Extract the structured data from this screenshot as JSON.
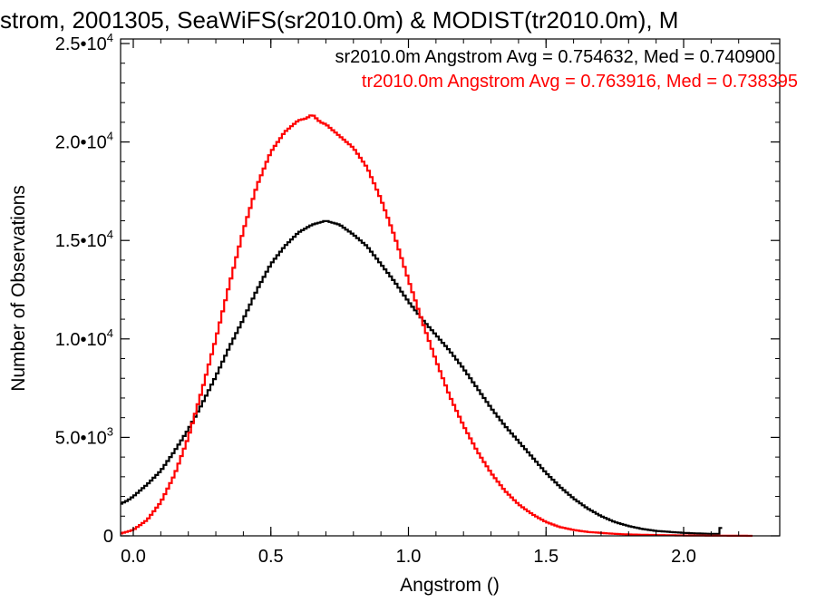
{
  "chart_data": {
    "type": "line",
    "title": "strom, 2001305, SeaWiFS(sr2010.0m) & MODIST(tr2010.0m), M",
    "xlabel": "Angstrom ()",
    "ylabel": "Number of Observations",
    "xlim": [
      -0.05,
      2.25
    ],
    "ylim": [
      0,
      25000
    ],
    "x_ticks": [
      {
        "value": 0.0,
        "label": "0.0"
      },
      {
        "value": 0.5,
        "label": "0.5"
      },
      {
        "value": 1.0,
        "label": "1.0"
      },
      {
        "value": 1.5,
        "label": "1.5"
      },
      {
        "value": 2.0,
        "label": "2.0"
      }
    ],
    "y_ticks": [
      {
        "value": 0,
        "mantissa": "0",
        "exp": ""
      },
      {
        "value": 5000,
        "mantissa": "5.0•10",
        "exp": "3"
      },
      {
        "value": 10000,
        "mantissa": "1.0•10",
        "exp": "4"
      },
      {
        "value": 15000,
        "mantissa": "1.5•10",
        "exp": "4"
      },
      {
        "value": 20000,
        "mantissa": "2.0•10",
        "exp": "4"
      },
      {
        "value": 25000,
        "mantissa": "2.5•10",
        "exp": "4"
      }
    ],
    "grid": false,
    "legend_position": "top-right",
    "annotations": [
      {
        "text": "sr2010.0m Angstrom Avg = 0.754632, Med = 0.740900",
        "color": "#000000"
      },
      {
        "text": "tr2010.0m Angstrom Avg = 0.763916, Med = 0.738395",
        "color": "#ff0000"
      }
    ],
    "series": [
      {
        "color": "#000000",
        "x": [
          -0.05,
          -0.02,
          0.0,
          0.05,
          0.1,
          0.15,
          0.2,
          0.25,
          0.3,
          0.35,
          0.4,
          0.45,
          0.5,
          0.55,
          0.6,
          0.65,
          0.7,
          0.75,
          0.8,
          0.85,
          0.9,
          0.95,
          1.0,
          1.05,
          1.1,
          1.15,
          1.2,
          1.25,
          1.3,
          1.35,
          1.4,
          1.45,
          1.5,
          1.55,
          1.6,
          1.65,
          1.7,
          1.75,
          1.8,
          1.85,
          1.9,
          1.95,
          2.0,
          2.05,
          2.1,
          2.13,
          2.14
        ],
        "y": [
          1600,
          1800,
          2000,
          2600,
          3300,
          4300,
          5400,
          6700,
          8100,
          9600,
          11000,
          12500,
          13800,
          14700,
          15400,
          15800,
          16000,
          15800,
          15300,
          14700,
          13800,
          12900,
          11900,
          11000,
          10200,
          9400,
          8500,
          7500,
          6500,
          5600,
          4800,
          4000,
          3200,
          2500,
          1900,
          1400,
          1000,
          700,
          500,
          350,
          250,
          200,
          150,
          120,
          100,
          100,
          700
        ]
      },
      {
        "color": "#ff0000",
        "x": [
          -0.05,
          0.0,
          0.05,
          0.1,
          0.15,
          0.2,
          0.25,
          0.3,
          0.35,
          0.4,
          0.45,
          0.5,
          0.55,
          0.6,
          0.63,
          0.65,
          0.68,
          0.7,
          0.75,
          0.8,
          0.85,
          0.9,
          0.95,
          1.0,
          1.05,
          1.1,
          1.15,
          1.2,
          1.25,
          1.3,
          1.35,
          1.4,
          1.45,
          1.5,
          1.55,
          1.6,
          1.65,
          1.7,
          1.75,
          1.8,
          1.9,
          2.0,
          2.1,
          2.2,
          2.25
        ],
        "y": [
          100,
          300,
          800,
          1700,
          3100,
          5000,
          7400,
          10000,
          12800,
          15500,
          17800,
          19500,
          20500,
          21100,
          21200,
          21400,
          21000,
          20900,
          20300,
          19700,
          18700,
          17100,
          15200,
          13000,
          10900,
          8900,
          7100,
          5600,
          4300,
          3200,
          2300,
          1600,
          1100,
          700,
          450,
          300,
          200,
          150,
          100,
          70,
          40,
          20,
          10,
          5,
          0
        ]
      }
    ]
  }
}
